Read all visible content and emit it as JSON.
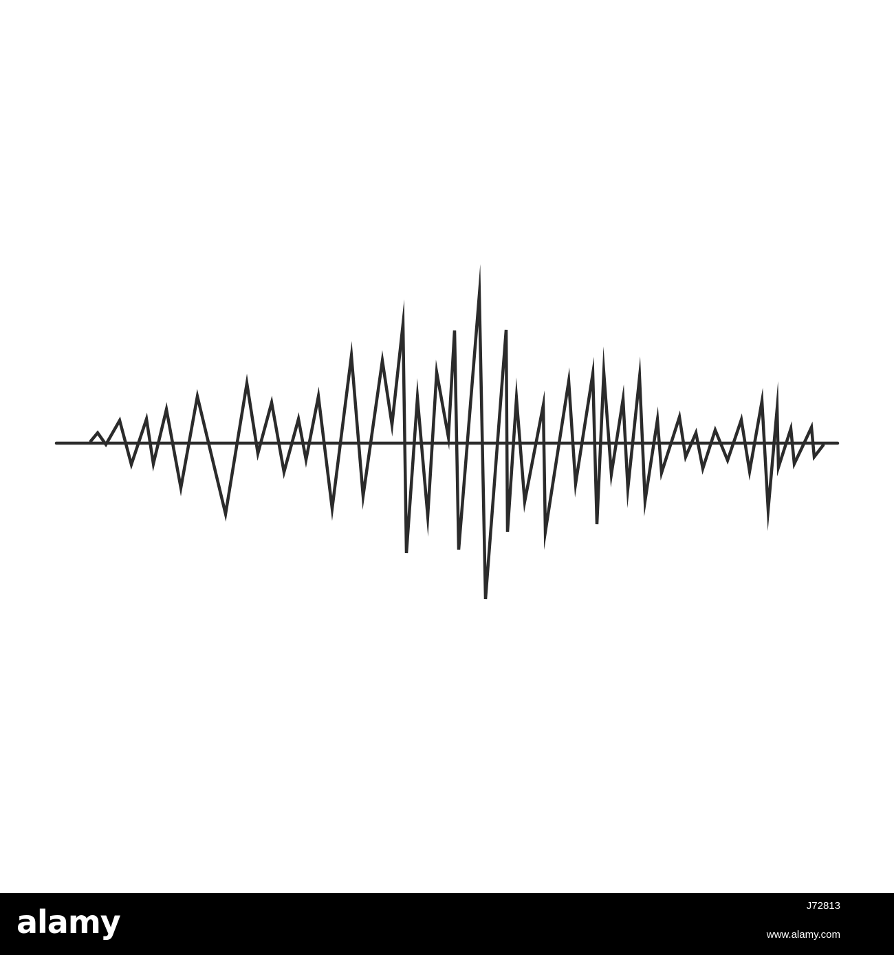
{
  "illustration": {
    "icon": "sound-wave-icon",
    "stroke_color": "#2b2b2b",
    "background_color": "#ffffff"
  },
  "footer": {
    "brand": "alamy",
    "image_id": "J72813",
    "url": "www.alamy.com",
    "background_color": "#000000",
    "text_color": "#ffffff"
  }
}
